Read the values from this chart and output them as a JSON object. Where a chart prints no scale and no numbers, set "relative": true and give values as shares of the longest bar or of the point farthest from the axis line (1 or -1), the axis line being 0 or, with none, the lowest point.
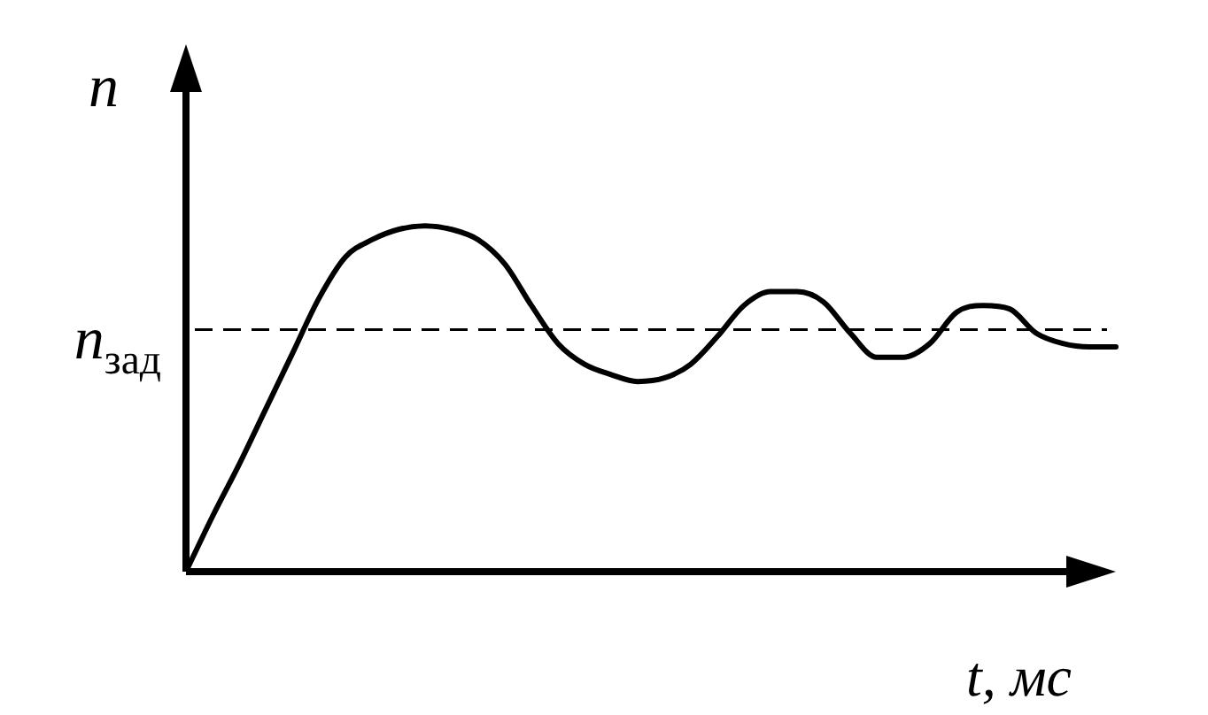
{
  "chart_data": {
    "type": "line",
    "relative": true,
    "xlabel": "t, мс",
    "ylabel": "n",
    "categories": [
      null,
      null,
      null,
      null,
      null,
      null,
      null,
      null,
      null,
      null,
      null,
      null,
      null,
      null,
      null,
      null,
      null,
      null,
      null,
      null,
      null,
      null,
      null,
      null,
      null,
      null,
      null,
      null,
      null,
      null,
      null,
      null,
      null,
      null,
      null,
      null
    ],
    "series": [
      {
        "color": "#000000",
        "values": [
          0,
          0.16,
          0.31,
          0.47,
          0.63,
          0.79,
          0.91,
          0.96,
          0.99,
          1,
          0.99,
          0.96,
          0.89,
          0.77,
          0.66,
          0.6,
          0.57,
          0.55,
          0.56,
          0.6,
          0.68,
          0.77,
          0.81,
          0.81,
          0.78,
          0.69,
          0.62,
          0.62,
          0.66,
          0.75,
          0.77,
          0.76,
          0.69,
          0.66,
          0.65,
          0.65
        ]
      }
    ],
    "ref_lines": [
      {
        "axis": "y",
        "value": 0.7,
        "label": "n$_{зад}$",
        "color": "#000000",
        "line_style": "dashed"
      }
    ],
    "legend": false,
    "marker": "none",
    "line_style": "solid"
  }
}
